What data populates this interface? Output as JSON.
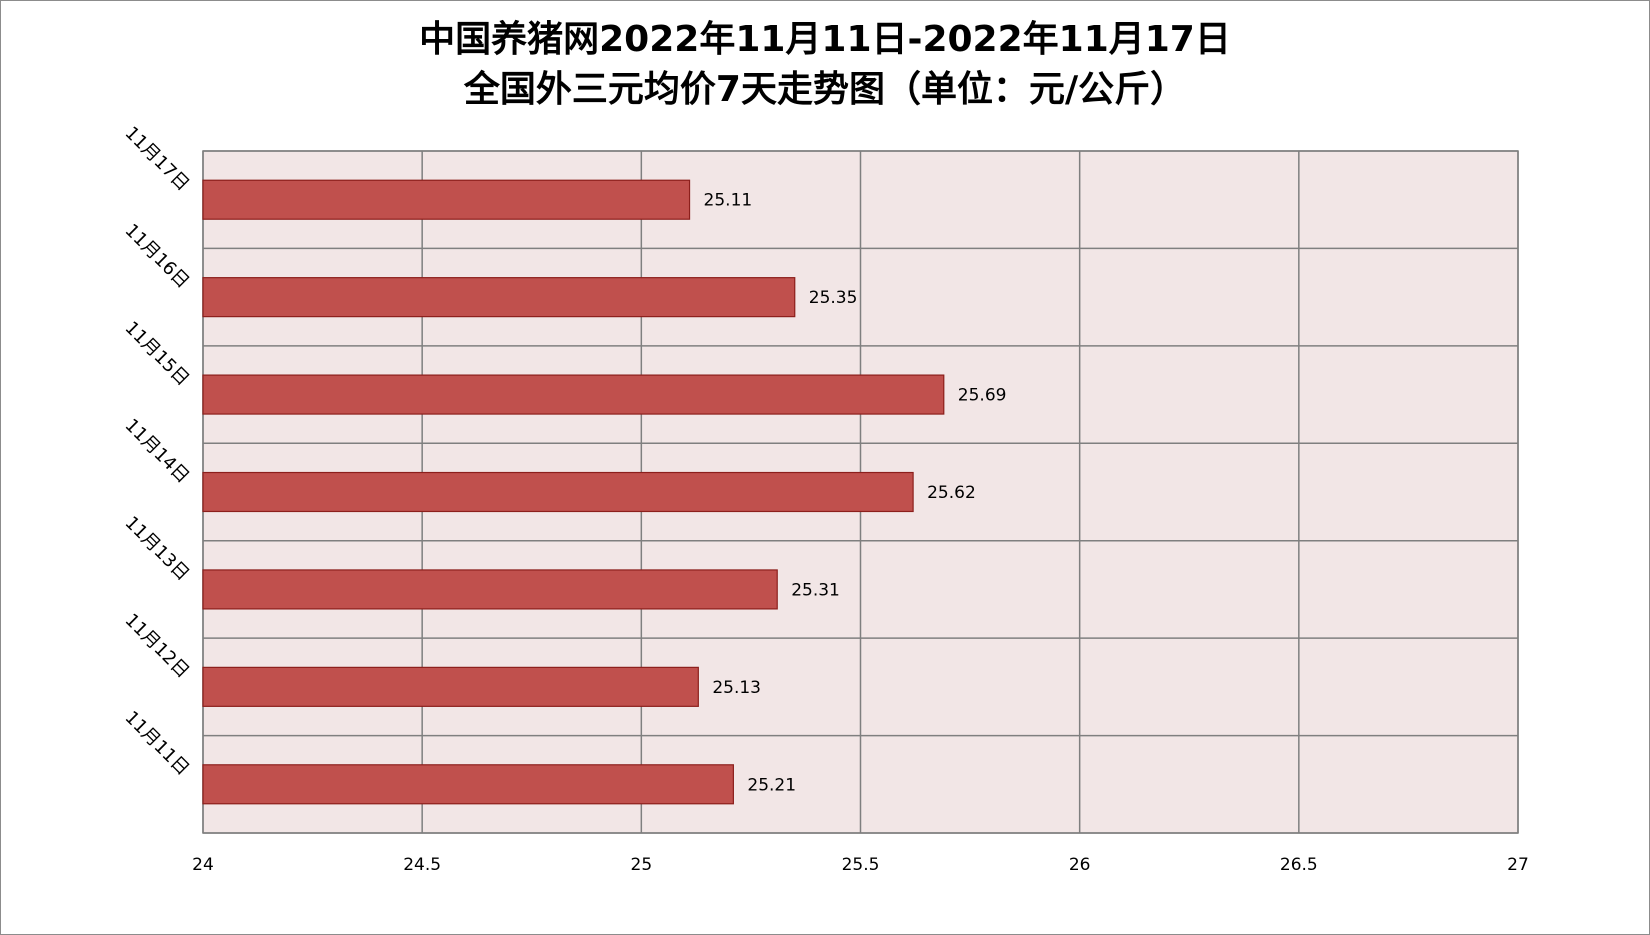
{
  "colors": {
    "plot_background": "#f2e6e6",
    "grid": "#7f7f7f",
    "bar_fill": "#c0504d",
    "bar_stroke": "#8c1f1c",
    "text": "#000000"
  },
  "chart_data": {
    "type": "bar",
    "orientation": "horizontal",
    "title": [
      "中国养猪网2022年11月11日-2022年11月17日",
      "全国外三元均价7天走势图（单位：元/公斤）"
    ],
    "categories": [
      "11月11日",
      "11月12日",
      "11月13日",
      "11月14日",
      "11月15日",
      "11月16日",
      "11月17日"
    ],
    "values": [
      25.21,
      25.13,
      25.31,
      25.62,
      25.69,
      25.35,
      25.11
    ],
    "data_labels": [
      "25.21",
      "25.13",
      "25.31",
      "25.62",
      "25.69",
      "25.35",
      "25.11"
    ],
    "x_ticks": [
      "24",
      "24.5",
      "25",
      "25.5",
      "26",
      "26.5",
      "27"
    ],
    "xlim": [
      24,
      27
    ],
    "grid": true,
    "legend": "none"
  }
}
